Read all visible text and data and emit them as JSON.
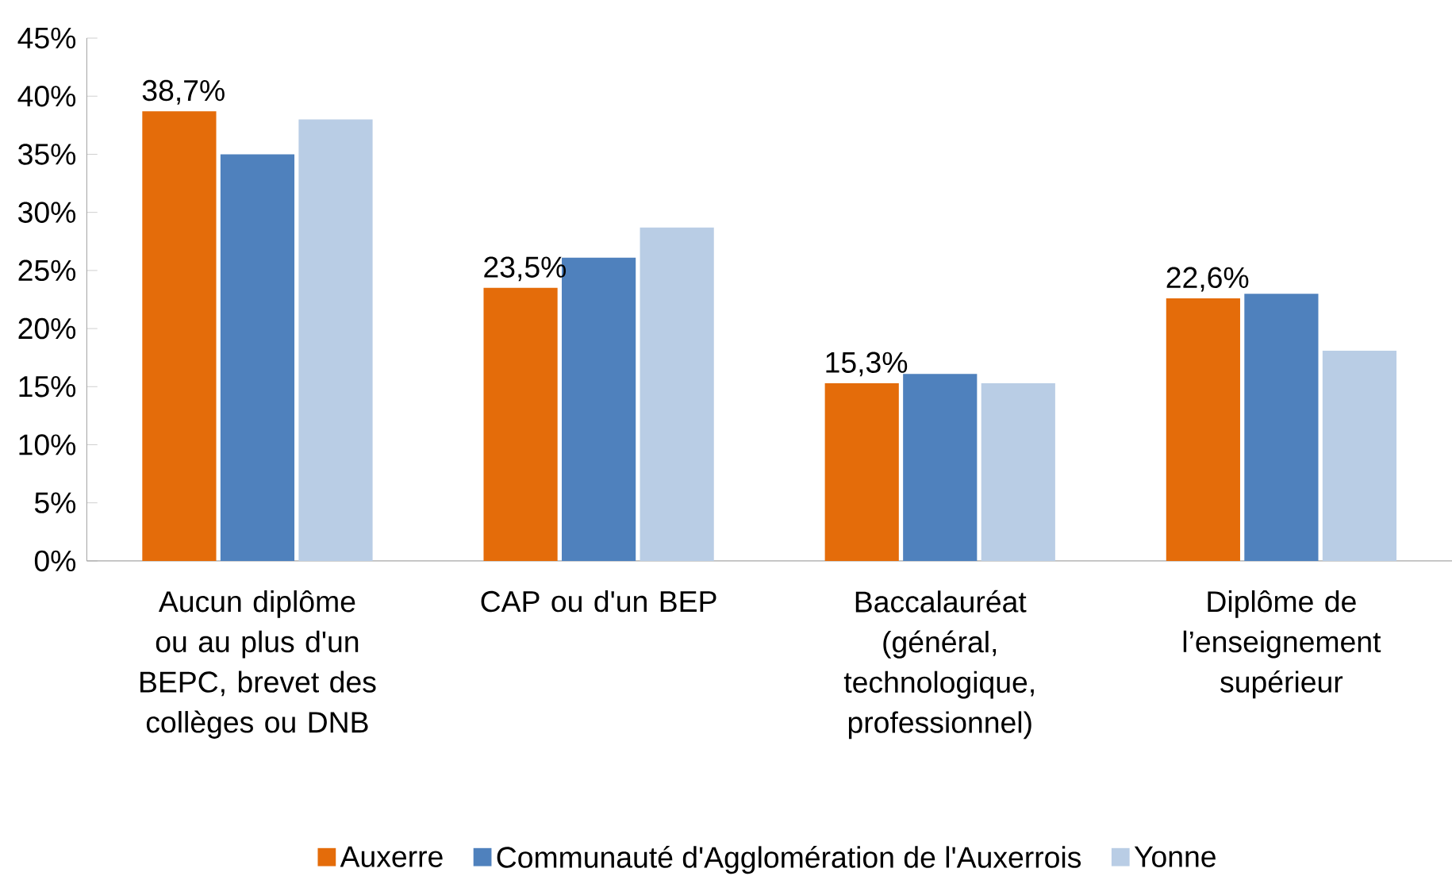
{
  "chart_data": {
    "type": "bar",
    "categories": [
      "Aucun diplôme ou au plus d'un BEPC, brevet des collèges ou DNB",
      "CAP ou d'un BEP",
      "Baccalauréat (général, technologique, professionnel)",
      "Diplôme de l’enseignement supérieur"
    ],
    "series": [
      {
        "name": "Auxerre",
        "color": "#e46c0a",
        "values": [
          38.7,
          23.5,
          15.3,
          22.6
        ],
        "value_labels": [
          "38,7%",
          "23,5%",
          "15,3%",
          "22,6%"
        ]
      },
      {
        "name": "Communauté d'Agglomération de l'Auxerrois",
        "color": "#4f81bd",
        "values": [
          35.0,
          26.1,
          16.1,
          23.0
        ]
      },
      {
        "name": "Yonne",
        "color": "#b9cde5",
        "values": [
          38.0,
          28.7,
          15.3,
          18.1
        ]
      }
    ],
    "ylim": [
      0,
      45
    ],
    "yticks": [
      {
        "value": 0,
        "label": "0%"
      },
      {
        "value": 5,
        "label": "5%"
      },
      {
        "value": 10,
        "label": "10%"
      },
      {
        "value": 15,
        "label": "15%"
      },
      {
        "value": 20,
        "label": "20%"
      },
      {
        "value": 25,
        "label": "25%"
      },
      {
        "value": 30,
        "label": "30%"
      },
      {
        "value": 35,
        "label": "35%"
      },
      {
        "value": 40,
        "label": "40%"
      },
      {
        "value": 45,
        "label": "45%"
      }
    ],
    "grid": false,
    "legend": "bottom"
  }
}
